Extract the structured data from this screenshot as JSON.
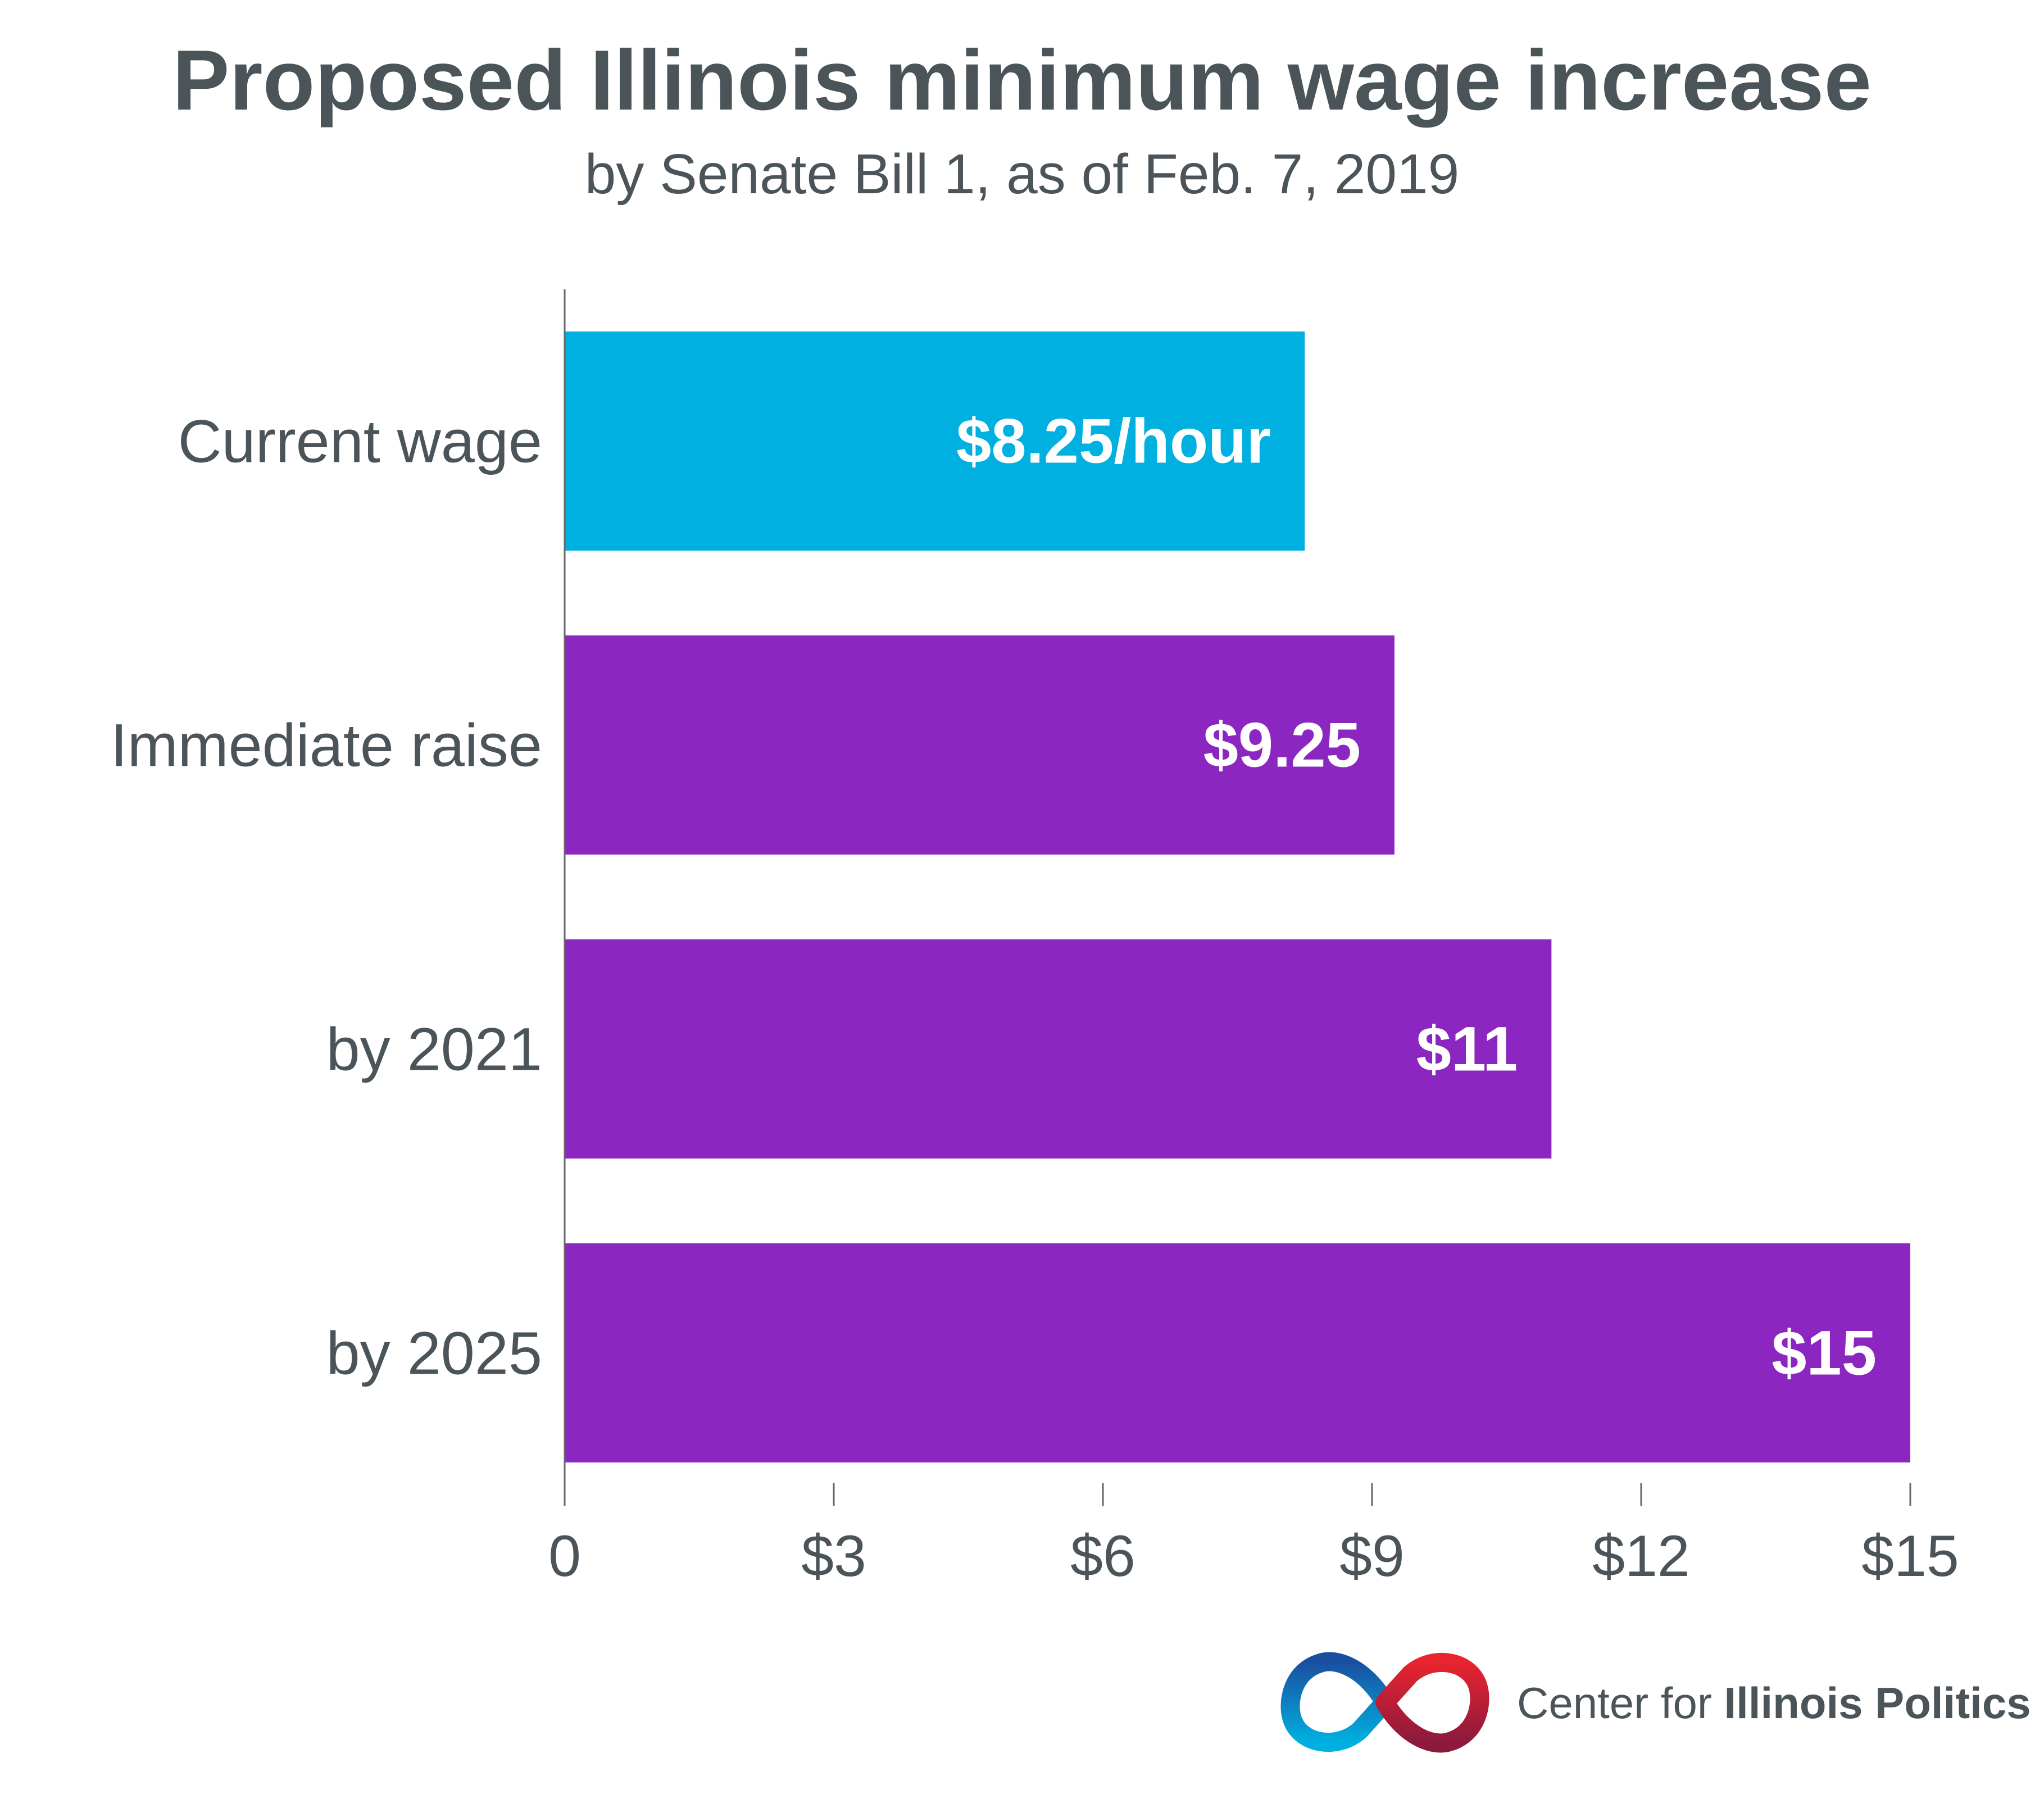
{
  "title": "Proposed Illinois minimum wage increase",
  "subtitle": "by Senate Bill 1, as of Feb. 7, 2019",
  "chart_data": {
    "type": "bar",
    "orientation": "horizontal",
    "categories": [
      "Current wage",
      "Immediate raise",
      "by 2021",
      "by 2025"
    ],
    "values": [
      8.25,
      9.25,
      11,
      15
    ],
    "data_labels": [
      "$8.25/hour",
      "$9.25",
      "$11",
      "$15"
    ],
    "colors": [
      "#00b0e0",
      "#8b27c0",
      "#8b27c0",
      "#8b27c0"
    ],
    "xlim": [
      0,
      15
    ],
    "x_ticks": [
      0,
      3,
      6,
      9,
      12,
      15
    ],
    "x_tick_labels": [
      "0",
      "$3",
      "$6",
      "$9",
      "$12",
      "$15"
    ],
    "grid": false,
    "legend": "none"
  },
  "brand": {
    "prefix": "Center for ",
    "name": "Illinois Politics",
    "logo_colors": [
      "#1a4fa0",
      "#00b0e0",
      "#e8242f",
      "#8b1a3c"
    ]
  }
}
